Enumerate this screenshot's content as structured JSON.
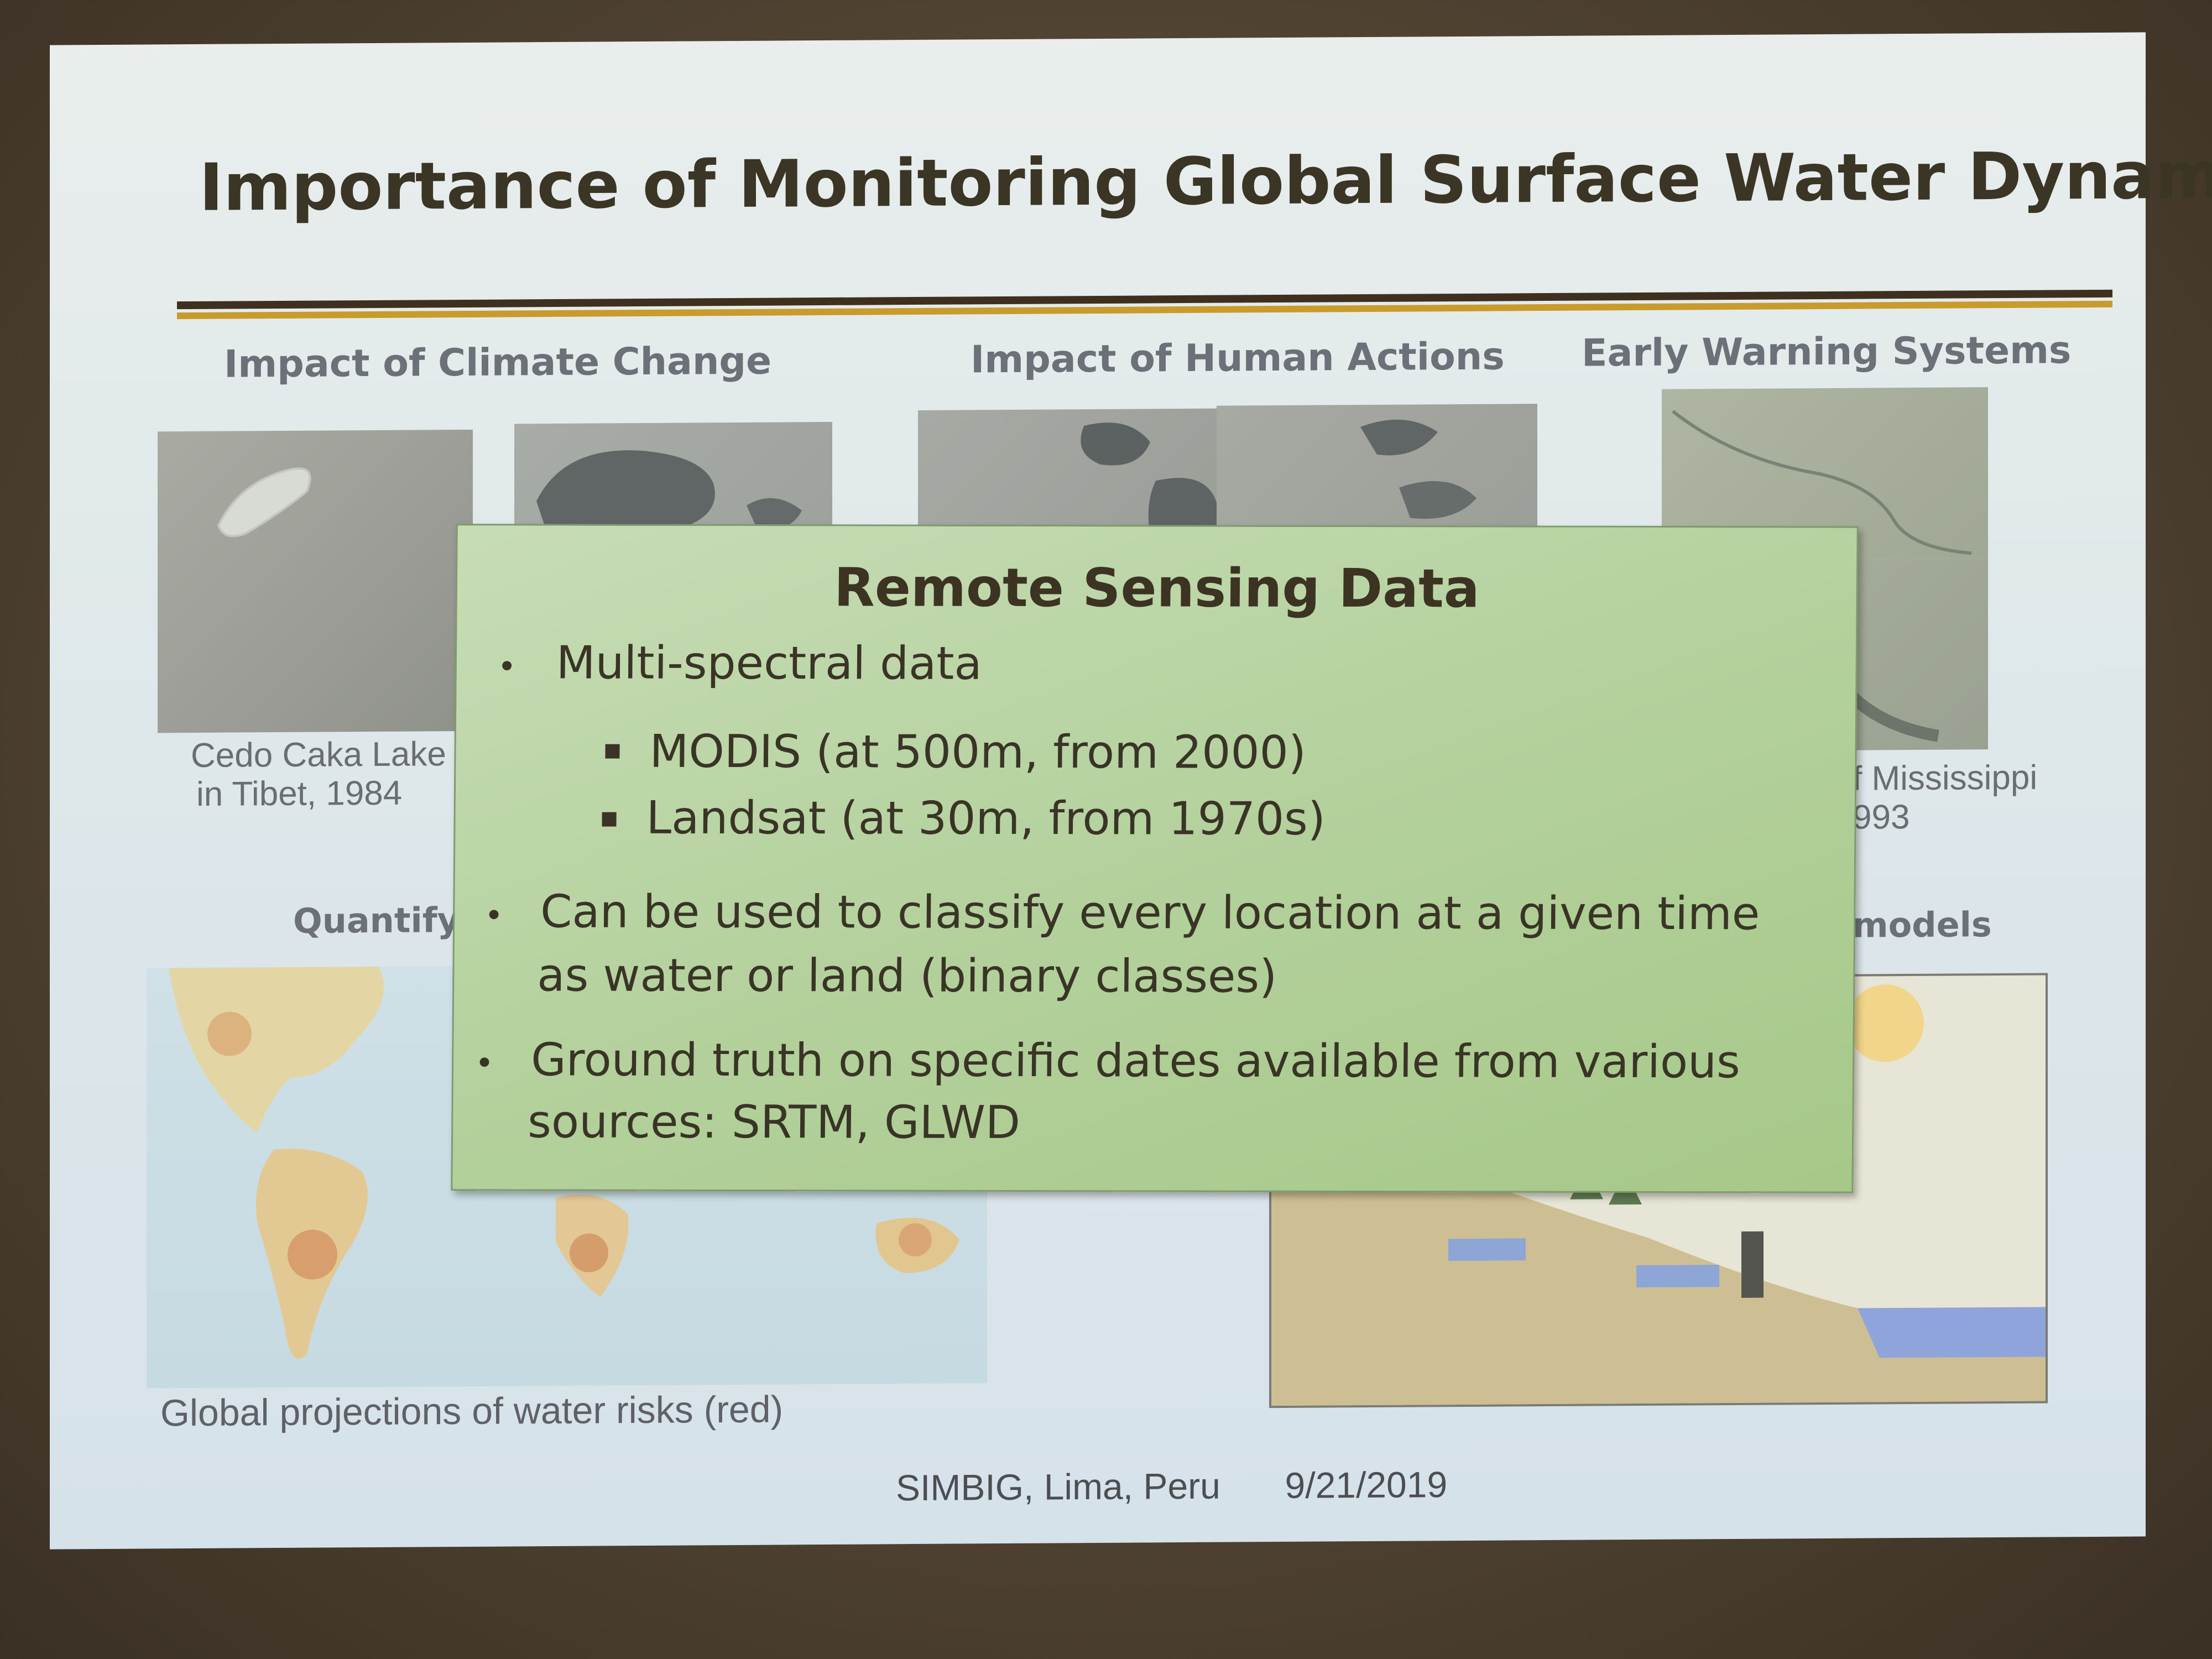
{
  "slide": {
    "title": "Importance of Monitoring Global Surface Water Dynamics",
    "sections": {
      "climate": "Impact of Climate Change",
      "human": "Impact of Human Actions",
      "warning": "Early Warning Systems",
      "quantify_partial": "Quantifyi",
      "models_partial": "models"
    },
    "captions": {
      "lake_line1": "Cedo Caka Lake",
      "lake_line2": "in Tibet, 1984",
      "miss_line1": "f Mississippi",
      "miss_line2": "993",
      "map": "Global projections of water risks (red)"
    },
    "footer": {
      "venue": "SIMBIG, Lima, Peru",
      "date": "9/21/2019"
    }
  },
  "overlay": {
    "title": "Remote Sensing Data",
    "b1": "Multi-spectral data",
    "s1": "MODIS (at 500m, from 2000)",
    "s2": "Landsat (at 30m, from 1970s)",
    "b2_line1": "Can be used to classify every location at a given time",
    "b2_line2": "as water or land (binary classes)",
    "b3_line1": "Ground truth on specific dates available from various",
    "b3_line2": "sources: SRTM, GLWD"
  }
}
